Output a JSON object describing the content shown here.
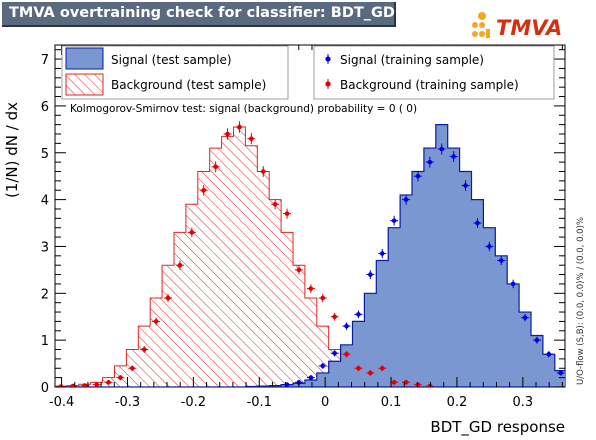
{
  "window_title": "TMVA overtraining check for classifier: BDT_GD",
  "logo_text": "TMVA",
  "colors": {
    "signal_fill": "#7b97d1",
    "signal_line": "#0a1e9a",
    "signal_points": "#0000e0",
    "background_hatch": "#e02424",
    "background_points": "#e00000",
    "title_bg": "#5c6a80",
    "logo_orange": "#f5a623"
  },
  "legend": {
    "signal_test": "Signal (test sample)",
    "background_test": "Background (test sample)",
    "signal_train": "Signal (training sample)",
    "background_train": "Background (training sample)"
  },
  "ks_text": "Kolmogorov-Smirnov test: signal (background) probability =     0 (    0)",
  "side_label": "U/O-flow (S,B): (0.0, 0.0)% / (0.0, 0.0)%",
  "chart_data": {
    "type": "histogram",
    "xlabel": "BDT_GD response",
    "ylabel": "(1/N) dN / dx",
    "xlim": [
      -0.41,
      0.364
    ],
    "ylim": [
      0,
      7.3
    ],
    "xticks": [
      "-0.4",
      "-0.3",
      "-0.2",
      "-0.1",
      "0",
      "0.1",
      "0.2",
      "0.3"
    ],
    "xtick_values": [
      -0.4,
      -0.3,
      -0.2,
      -0.1,
      0,
      0.1,
      0.2,
      0.3
    ],
    "yticks": [
      "0",
      "1",
      "2",
      "3",
      "4",
      "5",
      "6",
      "7"
    ],
    "bin_edges_start": -0.41,
    "bin_width": 0.01806,
    "series": [
      {
        "name": "Signal (test sample)",
        "style": "filled-histogram",
        "values": [
          0,
          0,
          0,
          0,
          0,
          0,
          0,
          0,
          0,
          0,
          0,
          0,
          0,
          0,
          0,
          0,
          0.01,
          0.02,
          0.03,
          0.05,
          0.08,
          0.15,
          0.3,
          0.55,
          0.9,
          1.4,
          2.0,
          2.7,
          3.4,
          4.1,
          4.6,
          5.1,
          5.6,
          5.1,
          4.6,
          4.0,
          3.4,
          2.8,
          2.2,
          1.6,
          1.1,
          0.7,
          0.35,
          0.2,
          0.1
        ]
      },
      {
        "name": "Background (test sample)",
        "style": "hatched-histogram",
        "values": [
          0.02,
          0.03,
          0.06,
          0.1,
          0.2,
          0.45,
          0.8,
          1.3,
          1.9,
          2.6,
          3.3,
          3.9,
          4.6,
          5.1,
          5.35,
          5.55,
          5.15,
          4.6,
          4.0,
          3.3,
          2.6,
          1.9,
          1.3,
          0.8,
          0.5,
          0.3,
          0.18,
          0.1,
          0.06,
          0.03,
          0.02,
          0.01,
          0,
          0,
          0,
          0,
          0,
          0,
          0,
          0,
          0,
          0,
          0,
          0,
          0
        ]
      },
      {
        "name": "Signal (training sample)",
        "style": "points-with-errors",
        "values": [
          0,
          0,
          0,
          0,
          0,
          0,
          0,
          0,
          0,
          0,
          0,
          0,
          0,
          0,
          0,
          0,
          0,
          0,
          0,
          0.05,
          0.1,
          0.2,
          0.45,
          0.72,
          1.3,
          1.55,
          2.4,
          2.85,
          3.55,
          4.0,
          4.5,
          4.8,
          5.08,
          4.92,
          4.3,
          3.5,
          3.0,
          2.7,
          2.2,
          1.48,
          1.0,
          0.7,
          0.3,
          0.25,
          0.1
        ]
      },
      {
        "name": "Background (training sample)",
        "style": "points-with-errors",
        "values": [
          0.01,
          0.02,
          0.03,
          0.05,
          0.1,
          0.2,
          0.4,
          0.8,
          1.4,
          1.9,
          2.6,
          3.3,
          4.2,
          4.7,
          5.4,
          5.55,
          5.3,
          4.6,
          3.9,
          3.7,
          2.5,
          2.1,
          1.9,
          1.5,
          0.7,
          0.4,
          0.3,
          0.4,
          0.1,
          0.1,
          0.05,
          0.02,
          0,
          0,
          0,
          0,
          0,
          0,
          0,
          0,
          0,
          0,
          0,
          0,
          0
        ]
      }
    ]
  }
}
